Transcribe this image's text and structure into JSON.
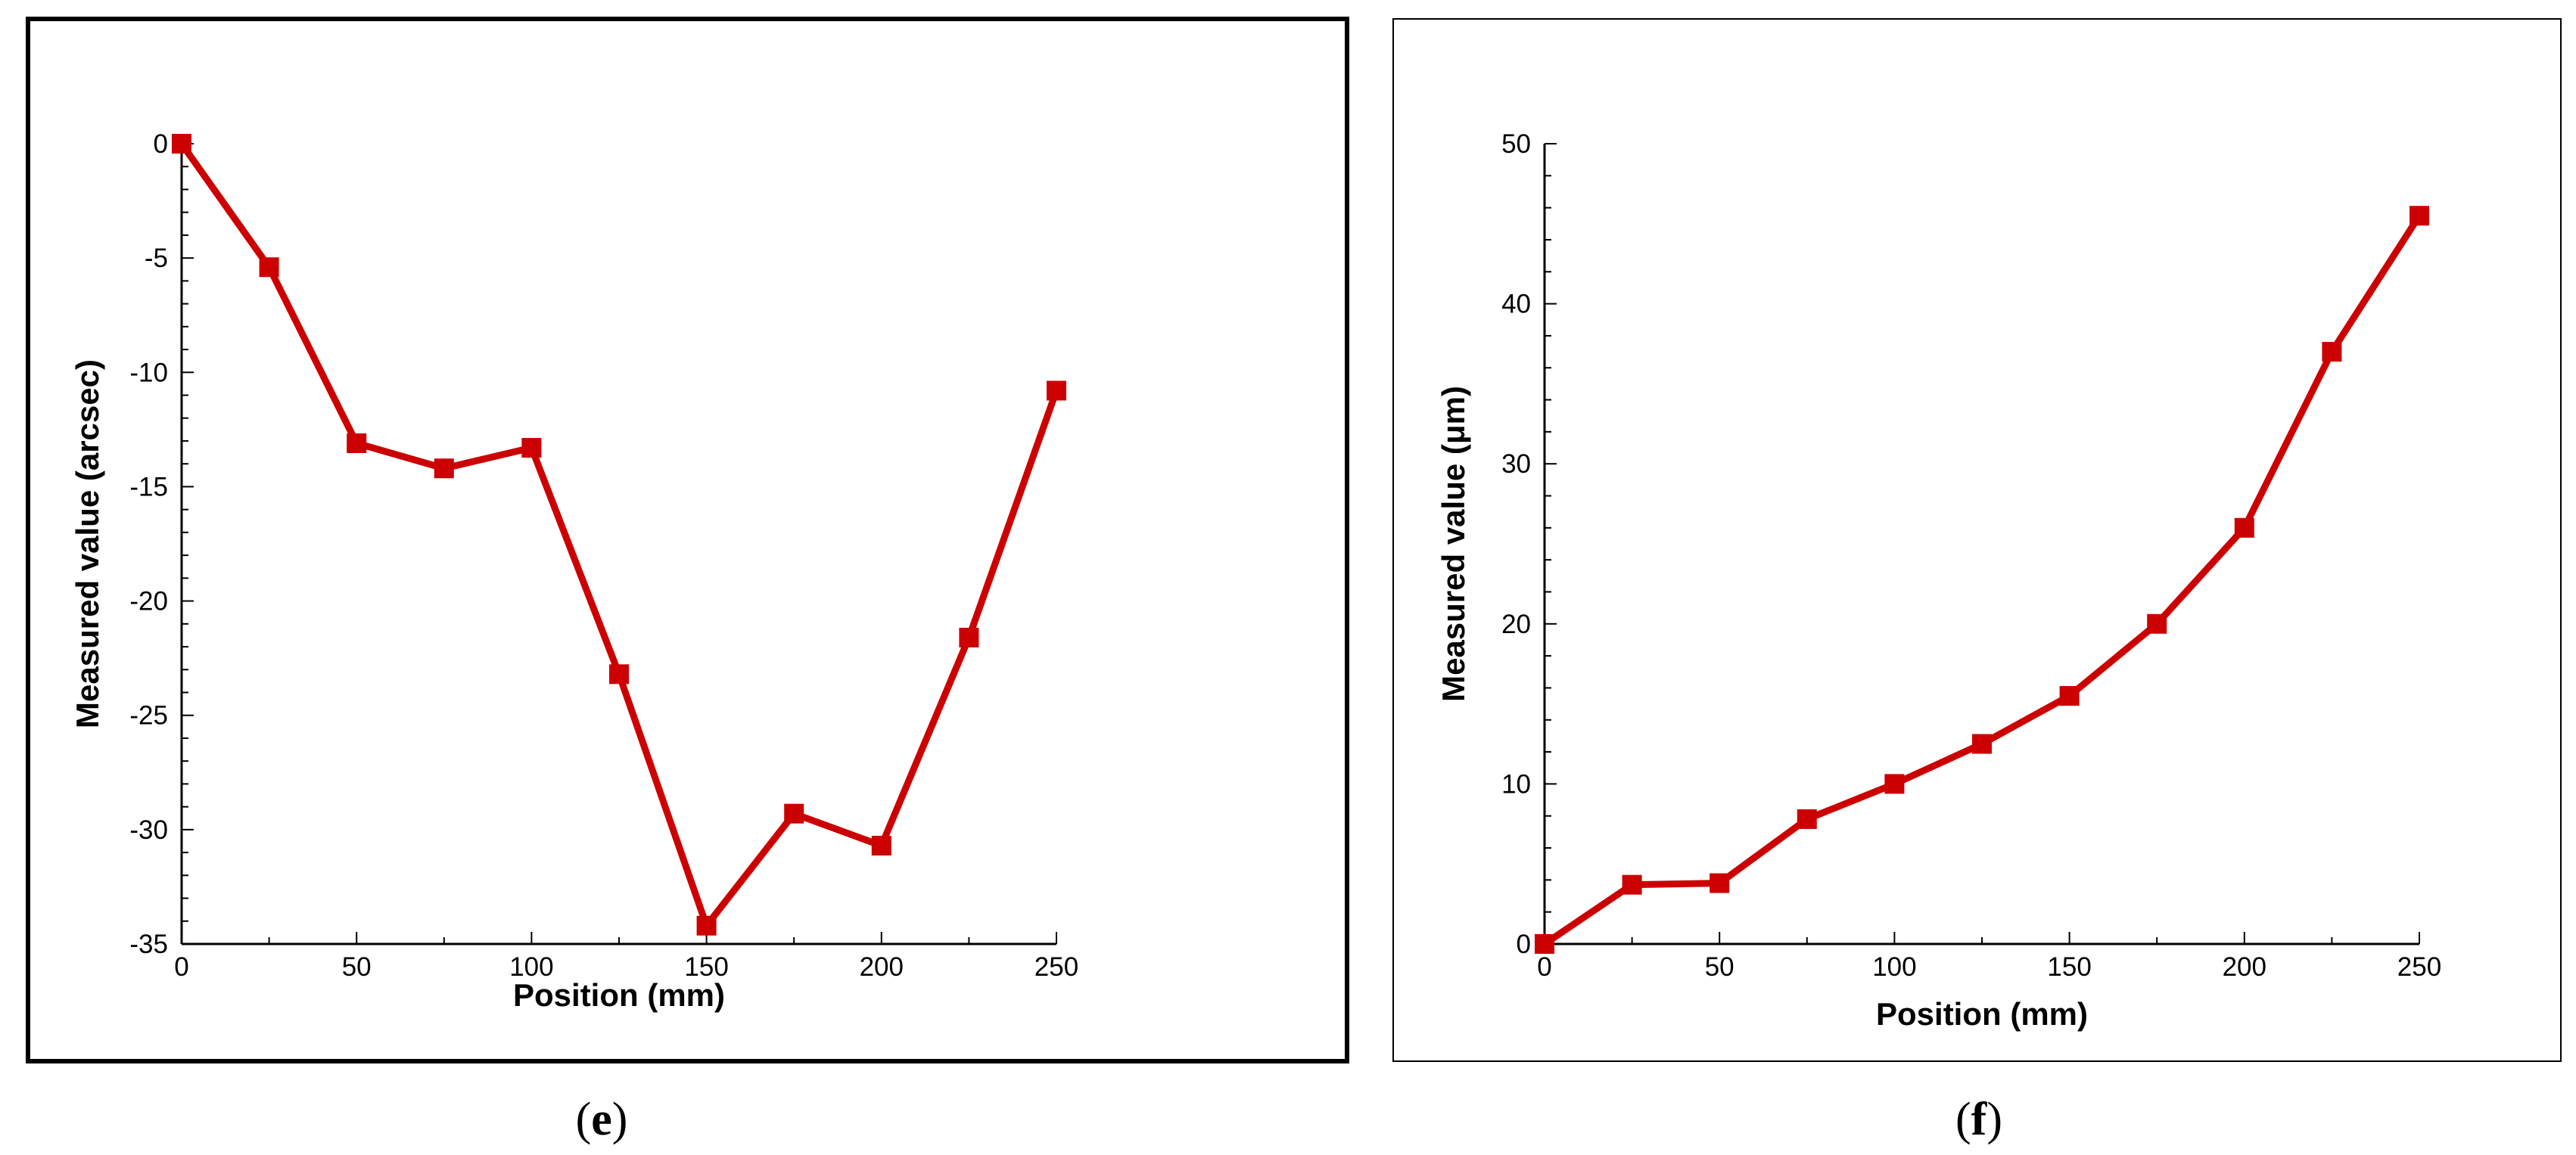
{
  "chart_data": [
    {
      "type": "line",
      "xlabel": "Position (mm)",
      "ylabel": "Measured value (arcsec)",
      "caption_letter": "e",
      "xlim": [
        0,
        250
      ],
      "ylim": [
        -35,
        0
      ],
      "xticks": [
        0,
        50,
        100,
        150,
        200,
        250
      ],
      "yticks": [
        0,
        -5,
        -10,
        -15,
        -20,
        -25,
        -30,
        -35
      ],
      "grid": false,
      "series": [
        {
          "color": "#cc0000",
          "marker": "square",
          "x": [
            0,
            25,
            50,
            75,
            100,
            125,
            150,
            175,
            200,
            225,
            250
          ],
          "y": [
            0,
            -5.4,
            -13.1,
            -14.2,
            -13.3,
            -23.2,
            -34.2,
            -29.3,
            -30.7,
            -21.6,
            -10.8
          ]
        }
      ]
    },
    {
      "type": "line",
      "xlabel": "Position (mm)",
      "ylabel": "Measured value (μm)",
      "caption_letter": "f",
      "xlim": [
        0,
        250
      ],
      "ylim": [
        0,
        50
      ],
      "xticks": [
        0,
        50,
        100,
        150,
        200,
        250
      ],
      "yticks": [
        0,
        10,
        20,
        30,
        40,
        50
      ],
      "grid": false,
      "series": [
        {
          "color": "#cc0000",
          "marker": "square",
          "x": [
            0,
            25,
            50,
            75,
            100,
            125,
            150,
            175,
            200,
            225,
            250
          ],
          "y": [
            0,
            3.7,
            3.8,
            7.8,
            10,
            12.5,
            15.5,
            20,
            26,
            37,
            45.5
          ]
        }
      ]
    }
  ]
}
